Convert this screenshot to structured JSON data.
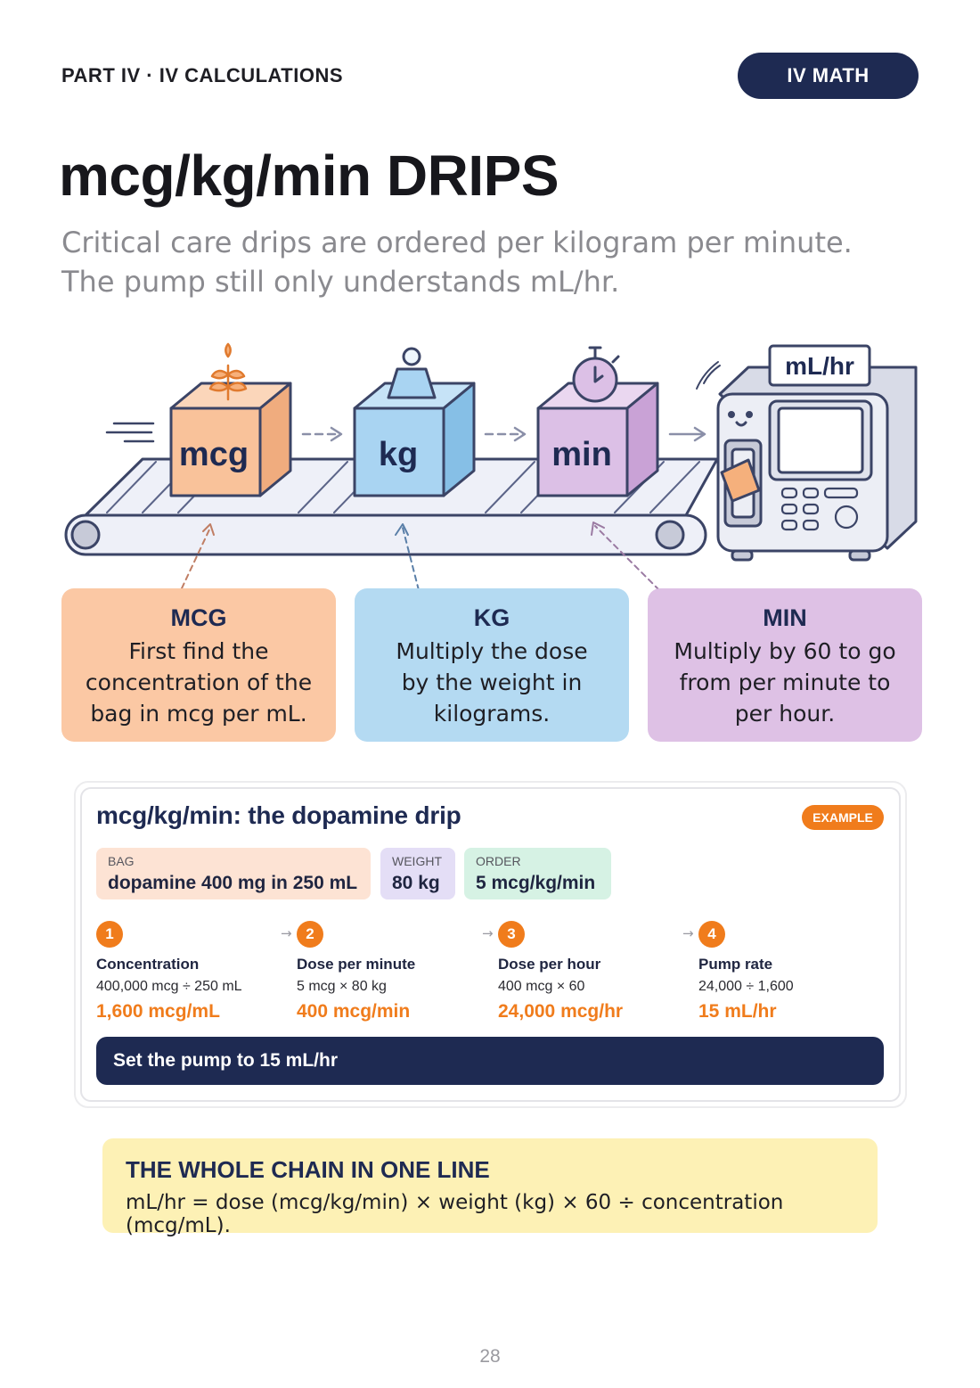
{
  "header": {
    "section": "PART IV · IV CALCULATIONS",
    "badge": "IV MATH"
  },
  "title": "mcg/kg/min DRIPS",
  "subtitle_lines": [
    "Critical care drips are ordered per kilogram per minute.",
    "The pump still only understands mL/hr."
  ],
  "illustration": {
    "boxes": [
      {
        "label": "mcg",
        "icon": "sprout-icon",
        "color": "#f9c29a"
      },
      {
        "label": "kg",
        "icon": "weight-icon",
        "color": "#a9d4f2"
      },
      {
        "label": "min",
        "icon": "stopwatch-icon",
        "color": "#dcc0e6"
      }
    ],
    "pump_label": "mL/hr",
    "line_color": "#3b4466"
  },
  "cards": [
    {
      "head": "MCG",
      "body": [
        "First find the",
        "concentration of the",
        "bag in mcg per mL."
      ]
    },
    {
      "head": "KG",
      "body": [
        "Multiply the dose",
        "by the weight in",
        "kilograms."
      ]
    },
    {
      "head": "MIN",
      "body": [
        "Multiply by 60 to go",
        "from per minute to",
        "per hour."
      ]
    }
  ],
  "example": {
    "title": "mcg/kg/min: the dopamine drip",
    "badge": "EXAMPLE",
    "given": [
      {
        "key": "BAG",
        "value": "dopamine 400 mg in 250 mL"
      },
      {
        "key": "WEIGHT",
        "value": "80 kg"
      },
      {
        "key": "ORDER",
        "value": "5 mcg/kg/min"
      }
    ],
    "steps": [
      {
        "num": "1",
        "name": "Concentration",
        "calc": "400,000 mcg ÷ 250 mL",
        "result": "1,600 mcg/mL"
      },
      {
        "num": "2",
        "name": "Dose per minute",
        "calc": "5 mcg × 80 kg",
        "result": "400 mcg/min"
      },
      {
        "num": "3",
        "name": "Dose per hour",
        "calc": "400 mcg × 60",
        "result": "24,000 mcg/hr"
      },
      {
        "num": "4",
        "name": "Pump rate",
        "calc": "24,000 ÷ 1,600",
        "result": "15 mL/hr"
      }
    ],
    "set_pump": "Set the pump to 15 mL/hr",
    "step_arrow": "→"
  },
  "chain": {
    "heading": "THE WHOLE CHAIN IN ONE LINE",
    "text": "mL/hr = dose (mcg/kg/min) × weight (kg) × 60 ÷ concentration (mcg/mL)."
  },
  "page_number": "28",
  "colors": {
    "navy": "#1e2a52",
    "orange": "#f07c1c",
    "card_mcg": "#fbc8a4",
    "card_kg": "#b4daf2",
    "card_min": "#dec1e5",
    "chain_bg": "#fdf1b5"
  }
}
